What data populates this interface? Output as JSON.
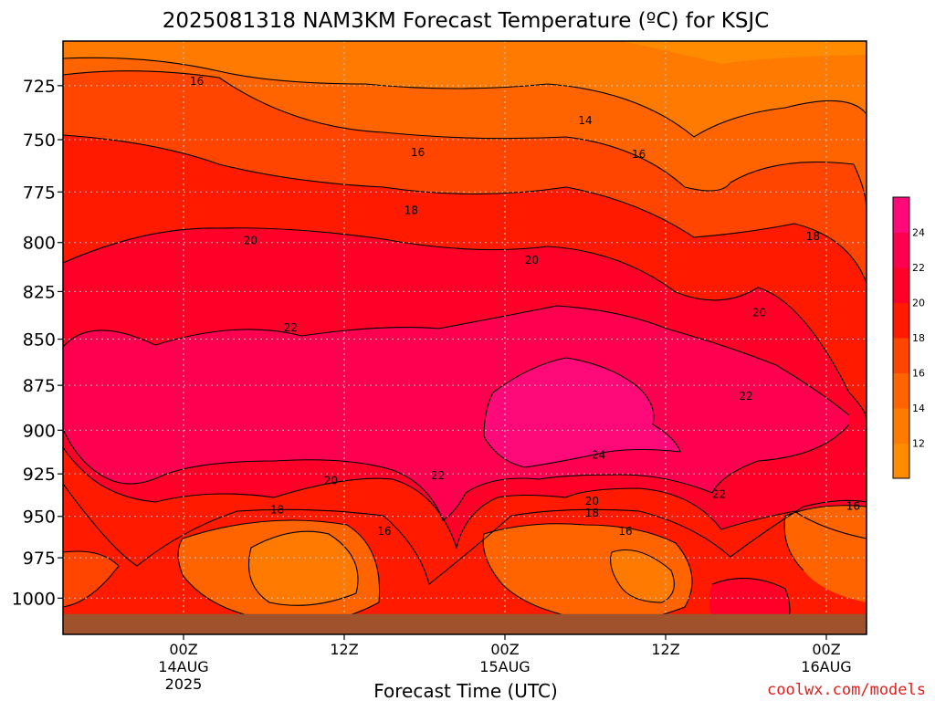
{
  "title": "2025081318 NAM3KM Forecast Temperature (ºC) for KSJC",
  "credit": "coolwx.com/models",
  "chart_data": {
    "type": "heatmap",
    "title": "2025081318 NAM3KM Forecast Temperature (ºC) for KSJC",
    "xlabel": "Forecast Time (UTC)",
    "ylabel": "",
    "x_range_hours_from_14AUG_00Z": [
      -9,
      51
    ],
    "y_range_hPa": [
      1023,
      705
    ],
    "y_scale": "log-pressure (inverted)",
    "grid": true,
    "y_ticks": [
      725,
      750,
      775,
      800,
      825,
      850,
      875,
      900,
      925,
      950,
      975,
      1000
    ],
    "x_ticks": [
      {
        "hour": 0,
        "lines": [
          "00Z",
          "14AUG",
          "2025"
        ]
      },
      {
        "hour": 12,
        "lines": [
          "12Z"
        ]
      },
      {
        "hour": 24,
        "lines": [
          "00Z",
          "15AUG"
        ]
      },
      {
        "hour": 36,
        "lines": [
          "12Z"
        ]
      },
      {
        "hour": 48,
        "lines": [
          "00Z",
          "16AUG"
        ]
      }
    ],
    "colorbar": {
      "placement": "right",
      "levels": [
        10,
        12,
        14,
        16,
        18,
        20,
        22,
        24,
        26
      ],
      "labels": [
        "12",
        "14",
        "16",
        "18",
        "20",
        "22",
        "24"
      ],
      "colors": [
        "#ff8c00",
        "#ff7a00",
        "#ff6400",
        "#ff4500",
        "#ff1a00",
        "#ff0028",
        "#ff0050",
        "#ff0a78"
      ]
    },
    "contour_labels": [
      {
        "value": "16",
        "hour": 1,
        "p": 723
      },
      {
        "value": "14",
        "hour": 30,
        "p": 741
      },
      {
        "value": "16",
        "hour": 17.5,
        "p": 756
      },
      {
        "value": "16",
        "hour": 34,
        "p": 757
      },
      {
        "value": "18",
        "hour": 17,
        "p": 784
      },
      {
        "value": "18",
        "hour": 47,
        "p": 797
      },
      {
        "value": "20",
        "hour": 5,
        "p": 799
      },
      {
        "value": "20",
        "hour": 26,
        "p": 809
      },
      {
        "value": "20",
        "hour": 43,
        "p": 836
      },
      {
        "value": "22",
        "hour": 8,
        "p": 844
      },
      {
        "value": "22",
        "hour": 42,
        "p": 881
      },
      {
        "value": "24",
        "hour": 31,
        "p": 914
      },
      {
        "value": "22",
        "hour": 19,
        "p": 926
      },
      {
        "value": "20",
        "hour": 11,
        "p": 929
      },
      {
        "value": "22",
        "hour": 40,
        "p": 937
      },
      {
        "value": "20",
        "hour": 30.5,
        "p": 941
      },
      {
        "value": "16",
        "hour": 50,
        "p": 944
      },
      {
        "value": "18",
        "hour": 7,
        "p": 946
      },
      {
        "value": "18",
        "hour": 30.5,
        "p": 948
      },
      {
        "value": "16",
        "hour": 15,
        "p": 959
      },
      {
        "value": "16",
        "hour": 33,
        "p": 959
      }
    ],
    "terrain_p_hPa": 1010,
    "terrain_color": "#a0522d"
  }
}
